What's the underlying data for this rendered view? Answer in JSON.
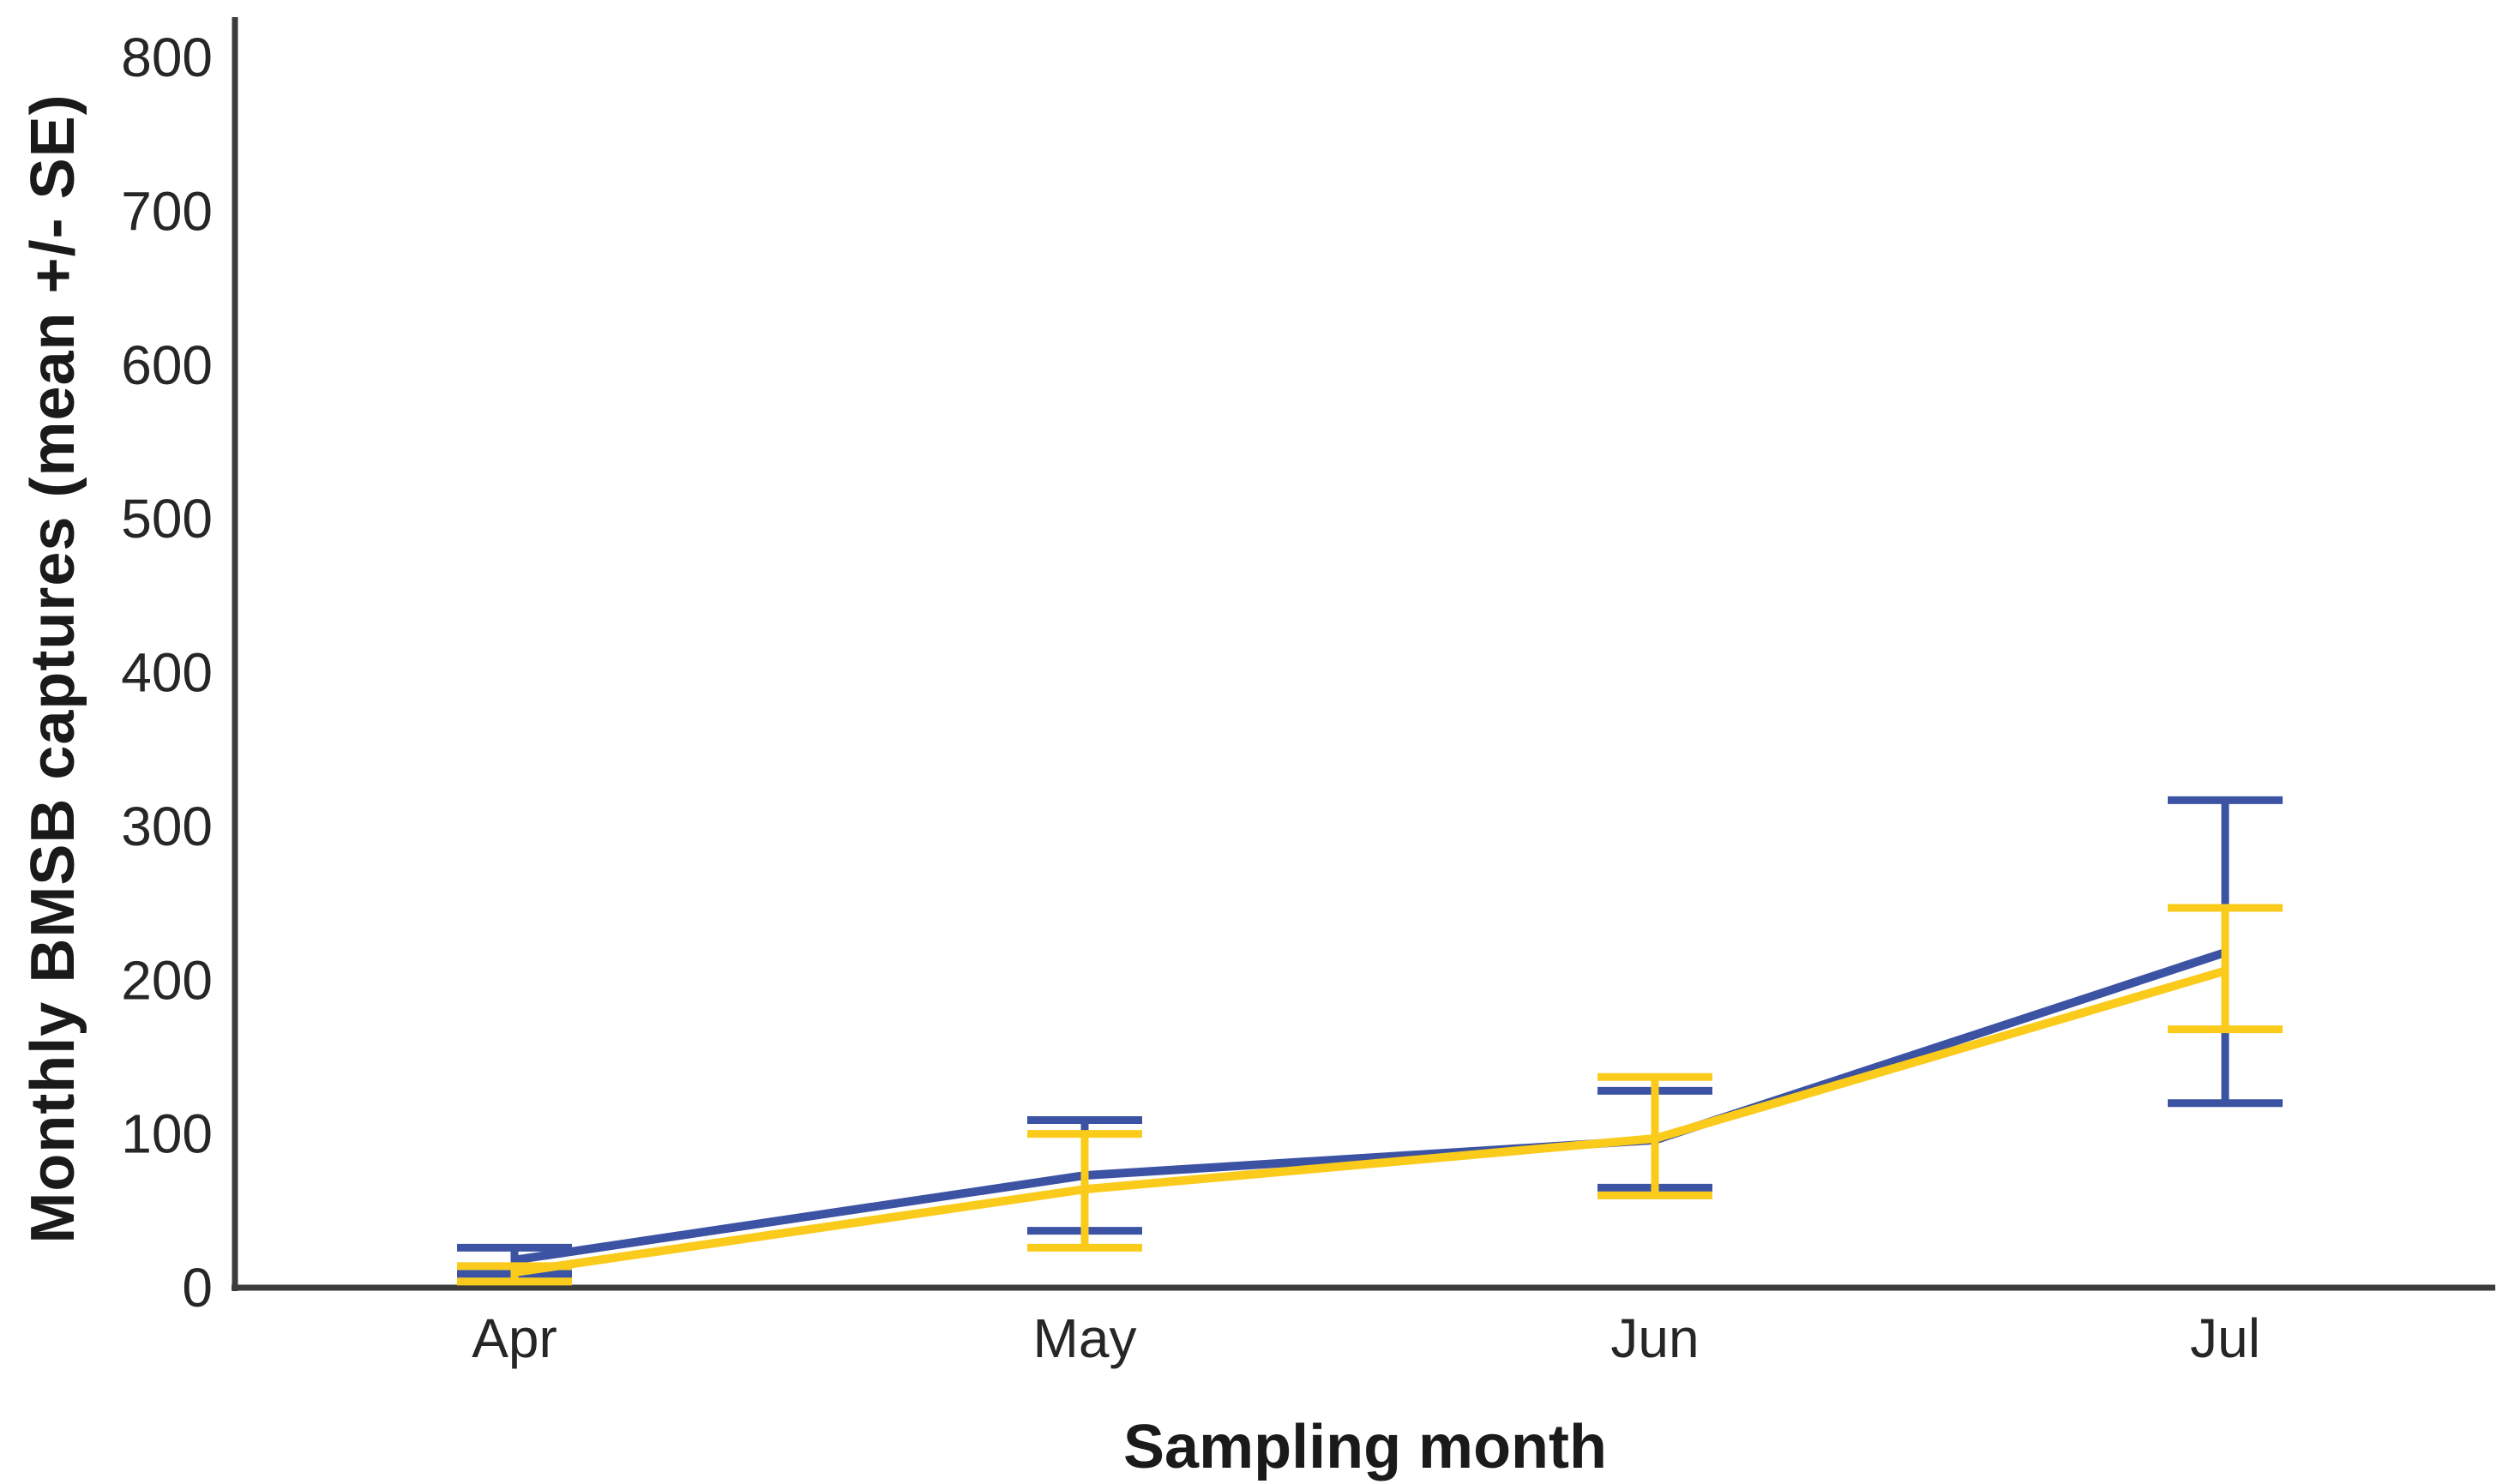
{
  "figure": {
    "y_axis": {
      "label": "Monthly BMSB captures (mean +/- SE)",
      "ticks": [
        0,
        100,
        200,
        300,
        400,
        500,
        600,
        700,
        800
      ]
    },
    "x_axis": {
      "label": "Sampling month",
      "categories": [
        "Apr",
        "May",
        "Jun",
        "Jul"
      ]
    }
  },
  "chart_data": {
    "type": "line",
    "title": "",
    "xlabel": "Sampling month",
    "ylabel": "Monthly BMSB captures (mean +/- SE)",
    "categories": [
      "Apr",
      "May",
      "Jun",
      "Jul"
    ],
    "ylim": [
      0,
      800
    ],
    "y_tick_step": 100,
    "grid": false,
    "legend": "none",
    "error_bars": "mean +/- SE, capped, both directions",
    "series": [
      {
        "name": "blue series",
        "color": "#3C53A4",
        "means": [
          18,
          73,
          96,
          218
        ],
        "upper": [
          26,
          109,
          128,
          317
        ],
        "lower": [
          9,
          37,
          65,
          120
        ]
      },
      {
        "name": "yellow series",
        "color": "#FACB1B",
        "means": [
          10,
          64,
          97,
          206
        ],
        "upper": [
          14,
          100,
          137,
          247
        ],
        "lower": [
          4,
          26,
          60,
          168
        ]
      }
    ],
    "axis_color": "#3b3b3b",
    "text_color": "#262626"
  }
}
